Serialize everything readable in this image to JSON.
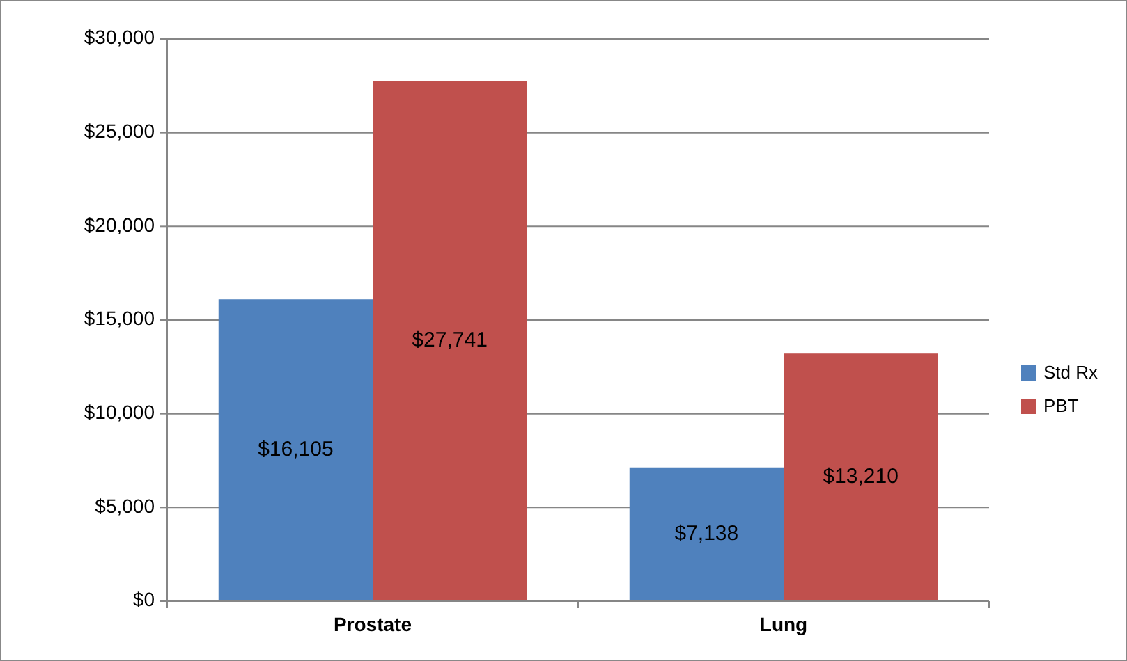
{
  "chart_data": {
    "type": "bar",
    "categories": [
      "Prostate",
      "Lung"
    ],
    "series": [
      {
        "name": "Std Rx",
        "color": "#4f81bd",
        "values": [
          16105,
          7138
        ],
        "value_labels": [
          "$16,105",
          "$7,138"
        ]
      },
      {
        "name": "PBT",
        "color": "#c0504d",
        "values": [
          27741,
          13210
        ],
        "value_labels": [
          "$27,741",
          "$13,210"
        ]
      }
    ],
    "ylim": [
      0,
      30000
    ],
    "yticks": [
      {
        "value": 0,
        "label": "$0"
      },
      {
        "value": 5000,
        "label": "$5,000"
      },
      {
        "value": 10000,
        "label": "$10,000"
      },
      {
        "value": 15000,
        "label": "$15,000"
      },
      {
        "value": 20000,
        "label": "$20,000"
      },
      {
        "value": 25000,
        "label": "$25,000"
      },
      {
        "value": 30000,
        "label": "$30,000"
      }
    ],
    "grid": "y",
    "legend": "right"
  }
}
